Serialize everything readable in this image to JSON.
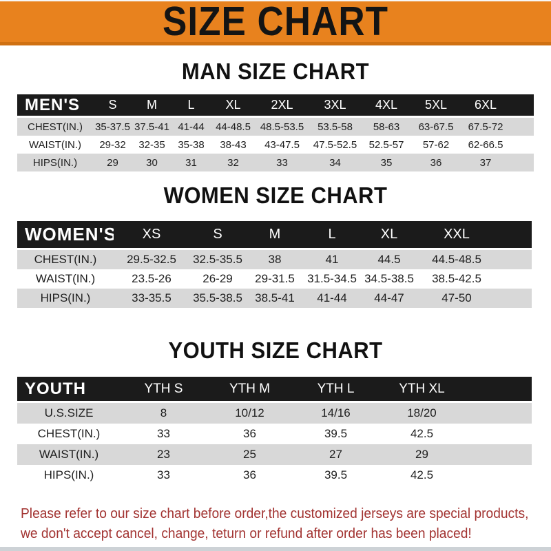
{
  "banner": {
    "title": "SIZE CHART"
  },
  "sections": [
    {
      "id": "men",
      "heading": "MAN SIZE CHART",
      "table": {
        "label": "MEN'S",
        "sizes": [
          "S",
          "M",
          "L",
          "XL",
          "2XL",
          "3XL",
          "4XL",
          "5XL",
          "6XL"
        ],
        "rows": [
          {
            "label": "CHEST(IN.)",
            "values": [
              "35-37.5",
              "37.5-41",
              "41-44",
              "44-48.5",
              "48.5-53.5",
              "53.5-58",
              "58-63",
              "63-67.5",
              "67.5-72"
            ]
          },
          {
            "label": "WAIST(IN.)",
            "values": [
              "29-32",
              "32-35",
              "35-38",
              "38-43",
              "43-47.5",
              "47.5-52.5",
              "52.5-57",
              "57-62",
              "62-66.5"
            ]
          },
          {
            "label": "HIPS(IN.)",
            "values": [
              "29",
              "30",
              "31",
              "32",
              "33",
              "34",
              "35",
              "36",
              "37"
            ]
          }
        ]
      }
    },
    {
      "id": "women",
      "heading": "WOMEN SIZE CHART",
      "table": {
        "label": "WOMEN'S",
        "sizes": [
          "XS",
          "S",
          "M",
          "L",
          "XL",
          "XXL"
        ],
        "rows": [
          {
            "label": "CHEST(IN.)",
            "values": [
              "29.5-32.5",
              "32.5-35.5",
              "38",
              "41",
              "44.5",
              "44.5-48.5"
            ]
          },
          {
            "label": "WAIST(IN.)",
            "values": [
              "23.5-26",
              "26-29",
              "29-31.5",
              "31.5-34.5",
              "34.5-38.5",
              "38.5-42.5"
            ]
          },
          {
            "label": "HIPS(IN.)",
            "values": [
              "33-35.5",
              "35.5-38.5",
              "38.5-41",
              "41-44",
              "44-47",
              "47-50"
            ]
          }
        ]
      }
    },
    {
      "id": "youth",
      "heading": "YOUTH SIZE CHART",
      "table": {
        "label": "YOUTH",
        "sizes": [
          "YTH S",
          "YTH M",
          "YTH L",
          "YTH XL"
        ],
        "rows": [
          {
            "label": "U.S.SIZE",
            "values": [
              "8",
              "10/12",
              "14/16",
              "18/20"
            ]
          },
          {
            "label": "CHEST(IN.)",
            "values": [
              "33",
              "36",
              "39.5",
              "42.5"
            ]
          },
          {
            "label": "WAIST(IN.)",
            "values": [
              "23",
              "25",
              "27",
              "29"
            ]
          },
          {
            "label": "HIPS(IN.)",
            "values": [
              "33",
              "36",
              "39.5",
              "42.5"
            ]
          }
        ]
      }
    }
  ],
  "footer": {
    "line1": "Please refer to our size chart before order,the customized jerseys are special products,",
    "line2": "we don't accept cancel, change, teturn or refund after order has been placed!"
  },
  "colors": {
    "banner_bg": "#E8821E",
    "banner_edge": "#CF7012",
    "header_bg": "#1B1B1B",
    "row_alt_bg": "#D8D8D8",
    "footer_text": "#A23331",
    "heading_text": "#111111"
  }
}
